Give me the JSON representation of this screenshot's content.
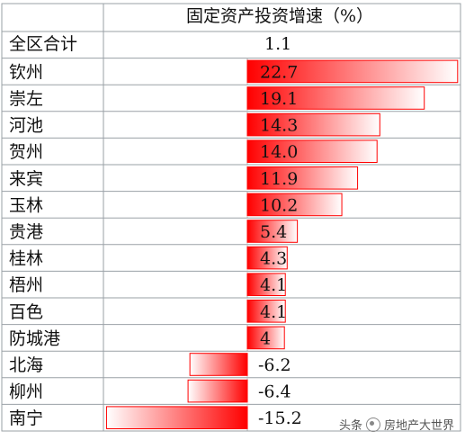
{
  "chart_data": {
    "type": "table",
    "title": "固定资产投资增速（%）",
    "total": {
      "label": "全区合计",
      "value": "1.1"
    },
    "categories": [
      "钦州",
      "崇左",
      "河池",
      "贺州",
      "来宾",
      "玉林",
      "贵港",
      "桂林",
      "梧州",
      "百色",
      "防城港",
      "北海",
      "柳州",
      "南宁"
    ],
    "values": [
      "22.7",
      "19.1",
      "14.3",
      "14.0",
      "11.9",
      "10.2",
      "5.4",
      "4.3",
      "4.1",
      "4.1",
      "4",
      "-6.2",
      "-6.4",
      "-15.2"
    ],
    "bar_color": "#ff0000"
  },
  "watermark": {
    "prefix": "头条",
    "name": "房地产大世界"
  }
}
